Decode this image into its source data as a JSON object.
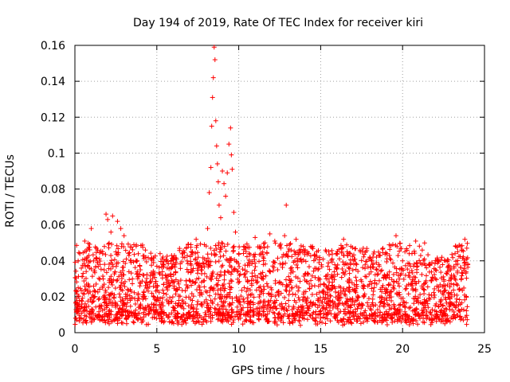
{
  "chart_data": {
    "type": "scatter",
    "title": "Day 194 of 2019, Rate Of TEC Index for receiver kiri",
    "xlabel": "GPS time / hours",
    "ylabel": "ROTI / TECUs",
    "xlim": [
      0,
      25
    ],
    "ylim": [
      0,
      0.16
    ],
    "x_ticks": [
      0,
      5,
      10,
      15,
      20,
      25
    ],
    "x_tick_labels": [
      "0",
      "5",
      "10",
      "15",
      "20",
      "25"
    ],
    "y_ticks": [
      0,
      0.02,
      0.04,
      0.06,
      0.08,
      0.1,
      0.12,
      0.14,
      0.16
    ],
    "y_tick_labels": [
      "0",
      "0.02",
      "0.04",
      "0.06",
      "0.08",
      "0.1",
      "0.12",
      "0.14",
      "0.16"
    ],
    "grid": true,
    "marker": "+",
    "color": "#ff0000",
    "series": [
      {
        "name": "ROTI",
        "points": [
          [
            0.1,
            0.012
          ],
          [
            0.2,
            0.025
          ],
          [
            0.3,
            0.044
          ],
          [
            0.4,
            0.018
          ],
          [
            0.5,
            0.033
          ],
          [
            0.6,
            0.051
          ],
          [
            0.7,
            0.009
          ],
          [
            0.8,
            0.037
          ],
          [
            1.0,
            0.058
          ],
          [
            1.1,
            0.021
          ],
          [
            1.3,
            0.041
          ],
          [
            1.5,
            0.015
          ],
          [
            1.8,
            0.048
          ],
          [
            1.9,
            0.066
          ],
          [
            2.0,
            0.063
          ],
          [
            2.1,
            0.028
          ],
          [
            2.2,
            0.056
          ],
          [
            2.3,
            0.065
          ],
          [
            2.5,
            0.045
          ],
          [
            2.6,
            0.062
          ],
          [
            2.8,
            0.058
          ],
          [
            3.0,
            0.054
          ],
          [
            3.1,
            0.019
          ],
          [
            3.3,
            0.043
          ],
          [
            3.6,
            0.049
          ],
          [
            4.0,
            0.035
          ],
          [
            4.3,
            0.046
          ],
          [
            4.5,
            0.012
          ],
          [
            4.8,
            0.039
          ],
          [
            5.2,
            0.044
          ],
          [
            5.6,
            0.028
          ],
          [
            5.9,
            0.043
          ],
          [
            6.2,
            0.041
          ],
          [
            6.5,
            0.009
          ],
          [
            6.8,
            0.047
          ],
          [
            7.1,
            0.045
          ],
          [
            7.4,
            0.052
          ],
          [
            7.7,
            0.035
          ],
          [
            7.9,
            0.049
          ],
          [
            8.1,
            0.058
          ],
          [
            8.2,
            0.078
          ],
          [
            8.3,
            0.092
          ],
          [
            8.35,
            0.115
          ],
          [
            8.4,
            0.131
          ],
          [
            8.45,
            0.142
          ],
          [
            8.5,
            0.159
          ],
          [
            8.55,
            0.152
          ],
          [
            8.6,
            0.118
          ],
          [
            8.65,
            0.104
          ],
          [
            8.7,
            0.094
          ],
          [
            8.75,
            0.084
          ],
          [
            8.8,
            0.071
          ],
          [
            8.9,
            0.064
          ],
          [
            9.0,
            0.09
          ],
          [
            9.1,
            0.083
          ],
          [
            9.2,
            0.076
          ],
          [
            9.3,
            0.089
          ],
          [
            9.4,
            0.105
          ],
          [
            9.5,
            0.114
          ],
          [
            9.55,
            0.099
          ],
          [
            9.6,
            0.091
          ],
          [
            9.7,
            0.067
          ],
          [
            9.8,
            0.056
          ],
          [
            10.0,
            0.044
          ],
          [
            10.3,
            0.048
          ],
          [
            10.6,
            0.039
          ],
          [
            11.0,
            0.053
          ],
          [
            11.3,
            0.047
          ],
          [
            11.6,
            0.05
          ],
          [
            11.9,
            0.055
          ],
          [
            12.2,
            0.051
          ],
          [
            12.5,
            0.048
          ],
          [
            12.8,
            0.054
          ],
          [
            12.9,
            0.071
          ],
          [
            13.2,
            0.046
          ],
          [
            13.5,
            0.052
          ],
          [
            13.8,
            0.041
          ],
          [
            14.2,
            0.045
          ],
          [
            14.5,
            0.048
          ],
          [
            14.9,
            0.039
          ],
          [
            15.3,
            0.046
          ],
          [
            15.7,
            0.041
          ],
          [
            16.0,
            0.036
          ],
          [
            16.4,
            0.052
          ],
          [
            16.8,
            0.044
          ],
          [
            17.2,
            0.038
          ],
          [
            17.6,
            0.047
          ],
          [
            18.0,
            0.042
          ],
          [
            18.4,
            0.039
          ],
          [
            18.8,
            0.047
          ],
          [
            19.2,
            0.043
          ],
          [
            19.6,
            0.054
          ],
          [
            20.0,
            0.04
          ],
          [
            20.4,
            0.044
          ],
          [
            20.8,
            0.051
          ],
          [
            21.2,
            0.046
          ],
          [
            21.6,
            0.038
          ],
          [
            22.0,
            0.035
          ],
          [
            22.4,
            0.042
          ],
          [
            22.8,
            0.037
          ],
          [
            23.2,
            0.044
          ],
          [
            23.6,
            0.046
          ],
          [
            23.8,
            0.052
          ],
          [
            23.9,
            0.041
          ]
        ]
      }
    ]
  }
}
